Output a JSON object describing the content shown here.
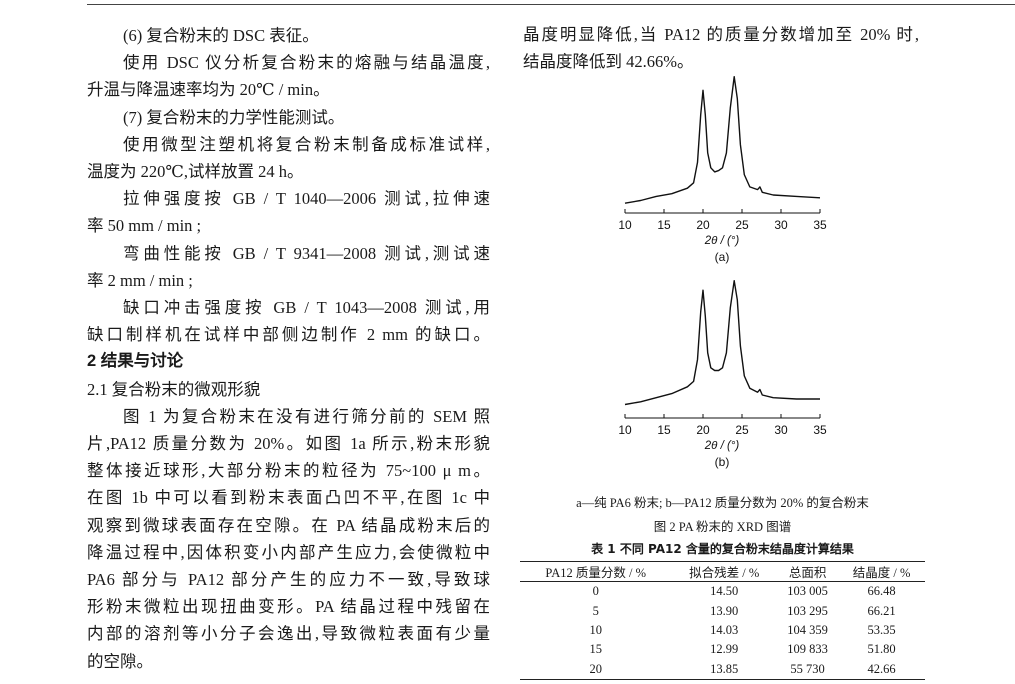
{
  "left_column": {
    "lines": [
      {
        "text": "(6) 复合粉末的 DSC 表征。",
        "style": "indent"
      },
      {
        "text": "使用 DSC 仪分析复合粉末的熔融与结晶温度,",
        "style": "indent-justify"
      },
      {
        "text": "升温与降温速率均为 20℃ / min。",
        "style": "plain"
      },
      {
        "text": "(7) 复合粉末的力学性能测试。",
        "style": "indent"
      },
      {
        "text": "使用微型注塑机将复合粉末制备成标准试样,",
        "style": "indent-justify"
      },
      {
        "text": "温度为 220℃,试样放置 24  h。",
        "style": "plain"
      },
      {
        "text": "拉伸强度按 GB / T 1040—2006 测试,拉伸速",
        "style": "indent-justify"
      },
      {
        "text": "率 50  mm / min ;",
        "style": "plain"
      },
      {
        "text": "弯曲性能按 GB / T 9341—2008 测试,测试速",
        "style": "indent-justify"
      },
      {
        "text": "率 2  mm / min ;",
        "style": "plain"
      },
      {
        "text": "缺口冲击强度按 GB / T 1043—2008 测试,用",
        "style": "indent-justify"
      },
      {
        "text": "缺口制样机在试样中部侧边制作 2  mm 的缺口。",
        "style": "justify"
      },
      {
        "text": "2    结果与讨论",
        "style": "heading"
      },
      {
        "text": "2.1    复合粉末的微观形貌",
        "style": "plain"
      },
      {
        "text": "图 1 为复合粉末在没有进行筛分前的 SEM 照",
        "style": "indent-justify"
      },
      {
        "text": "片,PA12 质量分数为 20%。如图 1a 所示,粉末形貌",
        "style": "justify"
      },
      {
        "text": "整体接近球形,大部分粉末的粒径为 75~100  μ m。",
        "style": "justify"
      },
      {
        "text": "在图 1b 中可以看到粉末表面凸凹不平,在图 1c 中",
        "style": "justify"
      },
      {
        "text": "观察到微球表面存在空隙。在 PA 结晶成粉末后的",
        "style": "justify"
      },
      {
        "text": "降温过程中,因体积变小内部产生应力,会使微粒中",
        "style": "justify"
      },
      {
        "text": "PA6 部分与 PA12 部分产生的应力不一致,导致球",
        "style": "justify"
      },
      {
        "text": "形粉末微粒出现扭曲变形。PA 结晶过程中残留在",
        "style": "justify"
      },
      {
        "text": "内部的溶剂等小分子会逸出,导致微粒表面有少量",
        "style": "justify"
      },
      {
        "text": "的空隙。",
        "style": "plain"
      }
    ]
  },
  "right_column": {
    "lines": [
      {
        "text": "晶度明显降低,当 PA12 的质量分数增加至 20% 时,",
        "style": "justify"
      },
      {
        "text": "结晶度降低到 42.66%。",
        "style": "plain"
      }
    ]
  },
  "chart_data": [
    {
      "type": "line",
      "panel_label": "(a)",
      "xlabel": "2θ / (°)",
      "ylabel": "",
      "xlim": [
        10,
        35
      ],
      "xticks": [
        10,
        15,
        20,
        25,
        30,
        35
      ],
      "y_axis_shown": false,
      "points": [
        [
          10,
          5
        ],
        [
          12,
          7
        ],
        [
          14,
          10
        ],
        [
          16,
          12
        ],
        [
          18,
          16
        ],
        [
          18.8,
          20
        ],
        [
          19.3,
          35
        ],
        [
          19.7,
          70
        ],
        [
          20,
          88
        ],
        [
          20.3,
          70
        ],
        [
          20.6,
          42
        ],
        [
          21,
          31
        ],
        [
          21.5,
          28
        ],
        [
          22,
          29
        ],
        [
          22.5,
          31
        ],
        [
          23,
          42
        ],
        [
          23.5,
          75
        ],
        [
          24,
          98
        ],
        [
          24.4,
          82
        ],
        [
          24.8,
          48
        ],
        [
          25.3,
          26
        ],
        [
          26,
          17
        ],
        [
          27,
          15
        ],
        [
          27.3,
          17
        ],
        [
          27.6,
          13
        ],
        [
          29,
          11
        ],
        [
          32,
          10
        ],
        [
          35,
          9
        ]
      ]
    },
    {
      "type": "line",
      "panel_label": "(b)",
      "xlabel": "2θ / (°)",
      "ylabel": "",
      "xlim": [
        10,
        35
      ],
      "xticks": [
        10,
        15,
        20,
        25,
        30,
        35
      ],
      "y_axis_shown": false,
      "points": [
        [
          10,
          7
        ],
        [
          12,
          9
        ],
        [
          14,
          12
        ],
        [
          16,
          15
        ],
        [
          18,
          20
        ],
        [
          18.8,
          24
        ],
        [
          19.3,
          40
        ],
        [
          19.7,
          75
        ],
        [
          20,
          91
        ],
        [
          20.3,
          72
        ],
        [
          20.6,
          45
        ],
        [
          21,
          34
        ],
        [
          21.5,
          32
        ],
        [
          22,
          32
        ],
        [
          22.5,
          34
        ],
        [
          23,
          45
        ],
        [
          23.5,
          78
        ],
        [
          24,
          98
        ],
        [
          24.4,
          84
        ],
        [
          24.8,
          50
        ],
        [
          25.3,
          28
        ],
        [
          26,
          19
        ],
        [
          27,
          16
        ],
        [
          27.3,
          18
        ],
        [
          27.6,
          14
        ],
        [
          29,
          12
        ],
        [
          32,
          11
        ],
        [
          35,
          11
        ]
      ]
    }
  ],
  "figure": {
    "legend": "a—纯 PA6 粉末; b—PA12 质量分数为 20% 的复合粉末",
    "caption": "图 2    PA 粉末的 XRD 图谱"
  },
  "table": {
    "caption": "表 1    不同 PA12 含量的复合粉末结晶度计算结果",
    "headers": [
      "PA12 质量分数 / %",
      "拟合残差 / %",
      "总面积",
      "结晶度 / %"
    ],
    "rows": [
      [
        "0",
        "14.50",
        "103 005",
        "66.48"
      ],
      [
        "5",
        "13.90",
        "103 295",
        "66.21"
      ],
      [
        "10",
        "14.03",
        "104 359",
        "53.35"
      ],
      [
        "15",
        "12.99",
        "109 833",
        "51.80"
      ],
      [
        "20",
        "13.85",
        "55 730",
        "42.66"
      ]
    ]
  }
}
